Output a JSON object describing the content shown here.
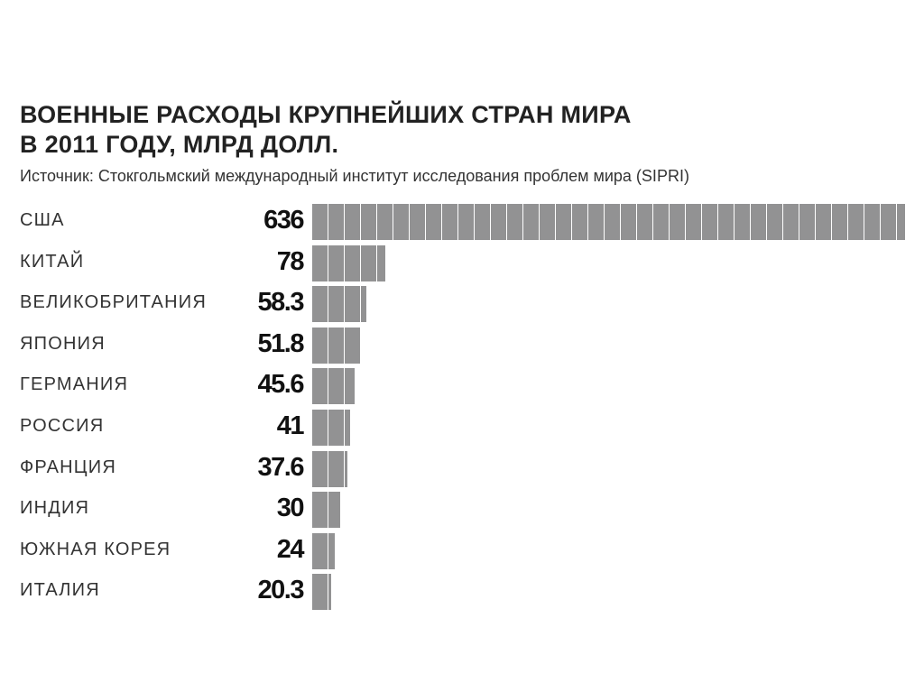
{
  "chart_data": {
    "type": "bar",
    "orientation": "horizontal",
    "title": [
      "ВОЕННЫЕ РАСХОДЫ КРУПНЕЙШИХ СТРАН МИРА",
      "В 2011 ГОДУ, МЛРД ДОЛЛ."
    ],
    "subtitle": "Источник: Стокгольмский международный институт исследования проблем мира (SIPRI)",
    "categories": [
      "США",
      "КИТАЙ",
      "ВЕЛИКОБРИТАНИЯ",
      "ЯПОНИЯ",
      "ГЕРМАНИЯ",
      "РОССИЯ",
      "ФРАНЦИЯ",
      "ИНДИЯ",
      "ЮЖНАЯ КОРЕЯ",
      "ИТАЛИЯ"
    ],
    "values": [
      636,
      78,
      58.3,
      51.8,
      45.6,
      41,
      37.6,
      30,
      24,
      20.3
    ],
    "value_labels": [
      "636",
      "78",
      "58.3",
      "51.8",
      "45.6",
      "41",
      "37.6",
      "30",
      "24",
      "20.3"
    ],
    "bar_color": "#929293",
    "grid": false,
    "legend": "none"
  }
}
